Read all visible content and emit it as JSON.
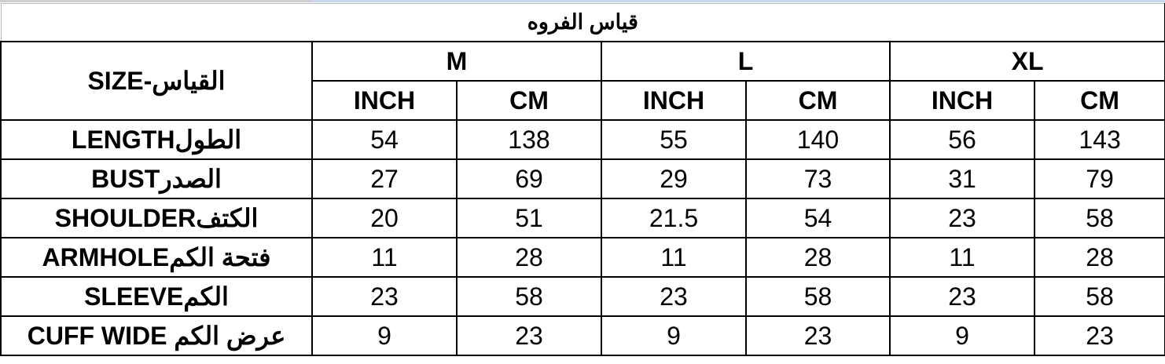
{
  "title": "قياس الفروه",
  "size_header": "SIZE-القياس",
  "sizes": [
    "M",
    "L",
    "XL"
  ],
  "units": [
    "INCH",
    "CM",
    "INCH",
    "CM",
    "INCH",
    "CM"
  ],
  "rows": [
    {
      "label": "LENGTHالطول",
      "values": [
        "54",
        "138",
        "55",
        "140",
        "56",
        "143"
      ]
    },
    {
      "label": "BUSTالصدر",
      "values": [
        "27",
        "69",
        "29",
        "73",
        "31",
        "79"
      ]
    },
    {
      "label": "SHOULDERالكتف",
      "values": [
        "20",
        "51",
        "21.5",
        "54",
        "23",
        "58"
      ]
    },
    {
      "label": "ARMHOLEفتحة الكم",
      "values": [
        "11",
        "28",
        "11",
        "28",
        "11",
        "28"
      ]
    },
    {
      "label": "SLEEVEالكم",
      "values": [
        "23",
        "58",
        "23",
        "58",
        "23",
        "58"
      ]
    },
    {
      "label": "CUFF WIDE عرض الكم",
      "values": [
        "9",
        "23",
        "9",
        "23",
        "9",
        "23"
      ]
    }
  ]
}
